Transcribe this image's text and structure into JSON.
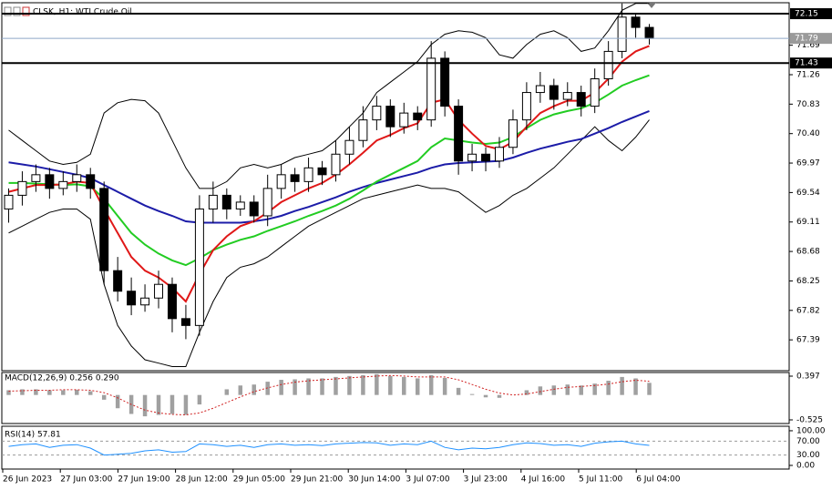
{
  "chart_data": [
    {
      "type": "candlestick",
      "title": "CLSK, H1: WTI Crude Oil",
      "open": [
        69.3,
        69.5,
        69.7,
        69.8,
        69.6,
        69.7,
        69.8,
        69.6,
        68.4,
        68.1,
        67.9,
        68.0,
        68.2,
        67.7,
        67.6,
        69.3,
        69.5,
        69.3,
        69.4,
        69.2,
        69.6,
        69.8,
        69.7,
        69.9,
        69.8,
        70.1,
        70.3,
        70.6,
        70.8,
        70.5,
        70.7,
        70.6,
        71.5,
        70.8,
        70.0,
        70.1,
        70.0,
        70.2,
        70.6,
        71.0,
        71.1,
        70.9,
        71.0,
        70.8,
        71.2,
        71.6,
        72.1,
        71.95
      ],
      "high": [
        69.6,
        69.85,
        69.95,
        69.9,
        69.85,
        69.95,
        69.9,
        69.7,
        68.6,
        68.3,
        68.2,
        68.4,
        68.3,
        67.9,
        69.5,
        69.7,
        69.6,
        69.5,
        69.5,
        69.8,
        69.95,
        69.9,
        70.05,
        70.0,
        70.3,
        70.5,
        70.8,
        70.95,
        70.9,
        70.85,
        70.8,
        71.75,
        71.6,
        70.9,
        70.25,
        70.2,
        70.35,
        70.75,
        71.15,
        71.3,
        71.2,
        71.15,
        71.1,
        71.35,
        71.75,
        72.3,
        72.15,
        72.0
      ],
      "low": [
        69.1,
        69.35,
        69.55,
        69.45,
        69.5,
        69.55,
        69.45,
        68.2,
        67.95,
        67.75,
        67.8,
        67.85,
        67.5,
        67.4,
        67.45,
        69.1,
        69.15,
        69.2,
        69.1,
        69.05,
        69.45,
        69.55,
        69.55,
        69.65,
        69.7,
        69.95,
        70.2,
        70.45,
        70.35,
        70.4,
        70.45,
        70.5,
        70.65,
        69.8,
        69.85,
        69.85,
        69.9,
        70.1,
        70.45,
        70.85,
        70.75,
        70.8,
        70.65,
        70.7,
        71.1,
        71.5,
        71.8,
        71.7
      ],
      "close": [
        69.5,
        69.7,
        69.8,
        69.6,
        69.7,
        69.8,
        69.6,
        68.4,
        68.1,
        67.9,
        68.0,
        68.2,
        67.7,
        67.6,
        69.3,
        69.5,
        69.3,
        69.4,
        69.2,
        69.6,
        69.8,
        69.7,
        69.9,
        69.8,
        70.1,
        70.3,
        70.6,
        70.8,
        70.5,
        70.7,
        70.6,
        71.5,
        70.8,
        70.0,
        70.1,
        70.0,
        70.2,
        70.6,
        71.0,
        71.1,
        70.9,
        71.0,
        70.8,
        71.2,
        71.6,
        72.1,
        71.95,
        71.79
      ],
      "series": [
        {
          "color": "#000000",
          "width": 1,
          "values": [
            70.45,
            70.3,
            70.15,
            70.0,
            69.95,
            69.98,
            70.1,
            70.7,
            70.85,
            70.9,
            70.88,
            70.7,
            70.3,
            69.9,
            69.6,
            69.6,
            69.7,
            69.9,
            69.95,
            69.9,
            69.95,
            70.05,
            70.1,
            70.15,
            70.3,
            70.5,
            70.7,
            71.0,
            71.15,
            71.3,
            71.45,
            71.7,
            71.85,
            71.9,
            71.88,
            71.8,
            71.55,
            71.5,
            71.7,
            71.85,
            71.9,
            71.8,
            71.6,
            71.65,
            71.9,
            72.2,
            72.3,
            72.3
          ]
        },
        {
          "color": "#000000",
          "width": 1,
          "values": [
            68.95,
            69.05,
            69.15,
            69.25,
            69.3,
            69.3,
            69.15,
            68.2,
            67.6,
            67.3,
            67.1,
            67.05,
            67.0,
            67.0,
            67.5,
            67.95,
            68.3,
            68.45,
            68.5,
            68.6,
            68.75,
            68.9,
            69.05,
            69.15,
            69.25,
            69.35,
            69.45,
            69.5,
            69.55,
            69.6,
            69.65,
            69.6,
            69.6,
            69.55,
            69.4,
            69.25,
            69.35,
            69.5,
            69.6,
            69.75,
            69.9,
            70.1,
            70.3,
            70.5,
            70.3,
            70.15,
            70.35,
            70.6
          ]
        },
        {
          "color": "#1c1ca8",
          "width": 2,
          "values": [
            69.98,
            69.95,
            69.92,
            69.88,
            69.84,
            69.8,
            69.75,
            69.65,
            69.55,
            69.45,
            69.35,
            69.27,
            69.2,
            69.12,
            69.1,
            69.1,
            69.1,
            69.1,
            69.12,
            69.15,
            69.2,
            69.27,
            69.33,
            69.4,
            69.47,
            69.55,
            69.62,
            69.68,
            69.73,
            69.78,
            69.83,
            69.9,
            69.95,
            69.97,
            69.98,
            69.99,
            70.0,
            70.05,
            70.12,
            70.18,
            70.23,
            70.28,
            70.32,
            70.4,
            70.48,
            70.57,
            70.65,
            70.73
          ]
        },
        {
          "color": "#22cc22",
          "width": 2,
          "values": [
            69.68,
            69.68,
            69.67,
            69.66,
            69.65,
            69.66,
            69.63,
            69.45,
            69.2,
            68.95,
            68.78,
            68.65,
            68.55,
            68.48,
            68.58,
            68.7,
            68.78,
            68.85,
            68.9,
            68.98,
            69.05,
            69.12,
            69.2,
            69.27,
            69.35,
            69.45,
            69.57,
            69.7,
            69.8,
            69.9,
            70.0,
            70.2,
            70.33,
            70.3,
            70.27,
            70.25,
            70.27,
            70.35,
            70.48,
            70.6,
            70.68,
            70.73,
            70.77,
            70.85,
            70.97,
            71.1,
            71.18,
            71.25
          ]
        },
        {
          "color": "#e01818",
          "width": 2,
          "values": [
            69.55,
            69.6,
            69.65,
            69.65,
            69.66,
            69.7,
            69.68,
            69.3,
            68.95,
            68.6,
            68.4,
            68.3,
            68.15,
            67.95,
            68.35,
            68.7,
            68.9,
            69.05,
            69.12,
            69.25,
            69.4,
            69.5,
            69.6,
            69.68,
            69.8,
            69.95,
            70.12,
            70.3,
            70.38,
            70.48,
            70.55,
            70.85,
            70.9,
            70.6,
            70.4,
            70.22,
            70.17,
            70.28,
            70.5,
            70.7,
            70.8,
            70.88,
            70.88,
            71.0,
            71.2,
            71.45,
            71.6,
            71.68
          ]
        }
      ],
      "ylim": [
        66.94,
        72.31
      ],
      "yticks": [
        71.69,
        71.26,
        70.83,
        {
          "value": 70.4,
          "label": "70.40"
        },
        69.97,
        69.54,
        69.11,
        68.68,
        68.25,
        67.82,
        67.39
      ],
      "levels": [
        72.15,
        71.43
      ],
      "current_price": 71.79
    },
    {
      "type": "macd",
      "title": "MACD(12,26,9) 0.256 0.290",
      "histogram": [
        0.1,
        0.12,
        0.12,
        0.1,
        0.1,
        0.11,
        0.08,
        -0.1,
        -0.28,
        -0.4,
        -0.45,
        -0.42,
        -0.4,
        -0.42,
        -0.2,
        0.0,
        0.12,
        0.2,
        0.22,
        0.28,
        0.32,
        0.33,
        0.35,
        0.35,
        0.38,
        0.4,
        0.42,
        0.44,
        0.4,
        0.38,
        0.35,
        0.42,
        0.36,
        0.15,
        0.02,
        -0.05,
        -0.06,
        0.0,
        0.1,
        0.18,
        0.2,
        0.22,
        0.2,
        0.24,
        0.3,
        0.38,
        0.35,
        0.256
      ],
      "signal": [
        0.08,
        0.09,
        0.1,
        0.1,
        0.11,
        0.11,
        0.1,
        0.05,
        -0.06,
        -0.2,
        -0.32,
        -0.38,
        -0.41,
        -0.42,
        -0.38,
        -0.28,
        -0.16,
        -0.04,
        0.07,
        0.15,
        0.22,
        0.27,
        0.3,
        0.32,
        0.34,
        0.36,
        0.38,
        0.4,
        0.41,
        0.4,
        0.38,
        0.38,
        0.38,
        0.32,
        0.22,
        0.12,
        0.04,
        0.0,
        0.02,
        0.07,
        0.12,
        0.16,
        0.18,
        0.2,
        0.23,
        0.28,
        0.31,
        0.29
      ],
      "histogram_color": "#a0a0a0",
      "signal_color": "#d02020",
      "ylim": [
        -0.602,
        0.474
      ],
      "yticks": [
        0.397,
        -0.525
      ]
    },
    {
      "type": "rsi",
      "title": "RSI(14) 57.81",
      "values": [
        55,
        60,
        62,
        52,
        58,
        60,
        50,
        30,
        32,
        35,
        42,
        45,
        38,
        40,
        62,
        60,
        55,
        58,
        52,
        60,
        62,
        58,
        60,
        57,
        62,
        64,
        66,
        65,
        58,
        62,
        60,
        70,
        52,
        45,
        50,
        48,
        52,
        60,
        65,
        63,
        58,
        60,
        55,
        64,
        68,
        70,
        62,
        57.81
      ],
      "color": "#1e90ff",
      "ylim": [
        -10.5,
        113
      ],
      "yticks": [
        {
          "value": 100,
          "label": "100.00"
        },
        {
          "value": 0,
          "label": "0.00"
        }
      ],
      "levels": [
        {
          "value": 70,
          "label": "70.00"
        },
        {
          "value": 30,
          "label": "30.00"
        }
      ],
      "x_labels": [
        "26 Jun 2023",
        "27 Jun 03:00",
        "27 Jun 19:00",
        "28 Jun 12:00",
        "29 Jun 05:00",
        "29 Jun 21:00",
        "30 Jun 14:00",
        "3 Jul 07:00",
        "3 Jul 23:00",
        "4 Jul 16:00",
        "5 Jul 11:00",
        "6 Jul 04:00"
      ]
    }
  ]
}
